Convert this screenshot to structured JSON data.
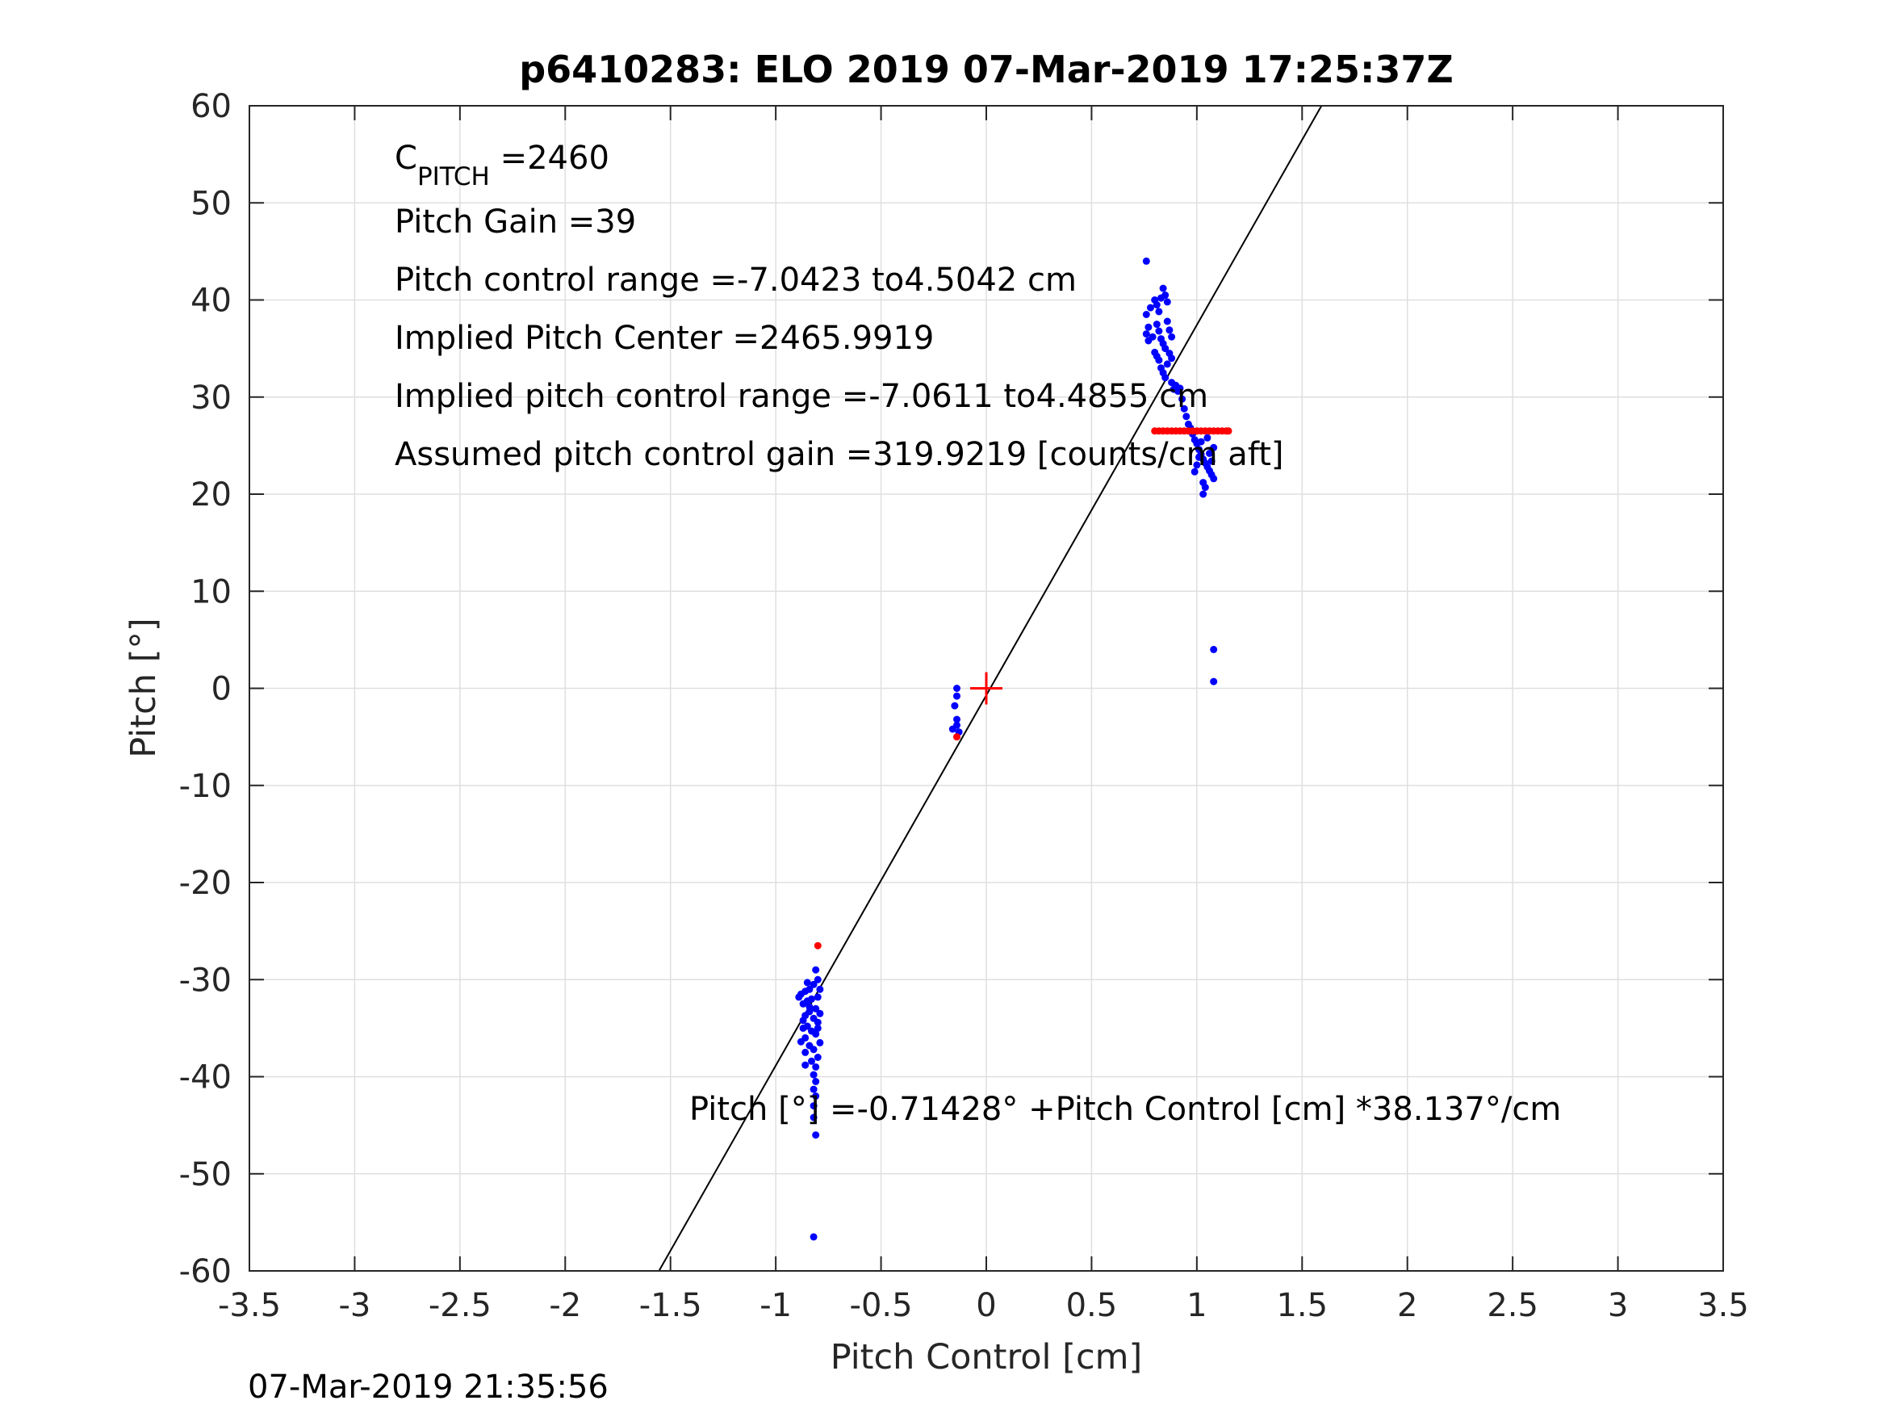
{
  "chart_data": {
    "type": "scatter",
    "title": "p6410283: ELO 2019 07-Mar-2019 17:25:37Z",
    "xlabel": "Pitch Control [cm]",
    "ylabel": "Pitch [°]",
    "xlim": [
      -3.5,
      3.5
    ],
    "ylim": [
      -60,
      60
    ],
    "grid": true,
    "xticks": [
      -3.5,
      -3,
      -2.5,
      -2,
      -1.5,
      -1,
      -0.5,
      0,
      0.5,
      1,
      1.5,
      2,
      2.5,
      3,
      3.5
    ],
    "xtick_labels": [
      "-3.5",
      "-3",
      "-2.5",
      "-2",
      "-1.5",
      "-1",
      "-0.5",
      "0",
      "0.5",
      "1",
      "1.5",
      "2",
      "2.5",
      "3",
      "3.5"
    ],
    "yticks": [
      -60,
      -50,
      -40,
      -30,
      -20,
      -10,
      0,
      10,
      20,
      30,
      40,
      50,
      60
    ],
    "ytick_labels": [
      "-60",
      "-50",
      "-40",
      "-30",
      "-20",
      "-10",
      "0",
      "10",
      "20",
      "30",
      "40",
      "50",
      "60"
    ],
    "footer_timestamp": "07-Mar-2019 21:35:56",
    "annotations": {
      "c_pitch_main": "C",
      "c_pitch_sub": "PITCH",
      "c_pitch_value": " =2460",
      "pitch_gain": "Pitch Gain =39",
      "pitch_control_range": "Pitch control range =-7.0423 to4.5042 cm",
      "implied_pitch_center": "Implied Pitch Center =2465.9919",
      "implied_pitch_control_range": "Implied pitch control range =-7.0611 to4.4855 cm",
      "assumed_gain": "Assumed pitch control gain =319.9219 [counts/cm aft]",
      "fit_equation": "Pitch [°] =-0.71428° +Pitch Control [cm] *38.137°/cm"
    },
    "fit_line": {
      "intercept": -0.71428,
      "slope": 38.137
    },
    "center_marker": {
      "x": 0,
      "y": 0,
      "color": "#ff0000"
    },
    "blue_color": "#0000ff",
    "red_color": "#ff0000",
    "series": [
      {
        "color": "#0000ff",
        "points": [
          [
            -0.81,
            -29.0
          ],
          [
            -0.8,
            -30.0
          ],
          [
            -0.82,
            -30.5
          ],
          [
            -0.84,
            -31.0
          ],
          [
            -0.86,
            -31.2
          ],
          [
            -0.88,
            -31.5
          ],
          [
            -0.8,
            -31.8
          ],
          [
            -0.83,
            -32.0
          ],
          [
            -0.85,
            -32.2
          ],
          [
            -0.87,
            -32.5
          ],
          [
            -0.81,
            -33.0
          ],
          [
            -0.84,
            -33.3
          ],
          [
            -0.86,
            -33.7
          ],
          [
            -0.82,
            -34.0
          ],
          [
            -0.8,
            -34.4
          ],
          [
            -0.85,
            -34.8
          ],
          [
            -0.87,
            -35.0
          ],
          [
            -0.83,
            -35.3
          ],
          [
            -0.81,
            -35.6
          ],
          [
            -0.86,
            -36.0
          ],
          [
            -0.88,
            -36.4
          ],
          [
            -0.84,
            -36.8
          ],
          [
            -0.82,
            -37.2
          ],
          [
            -0.86,
            -37.5
          ],
          [
            -0.8,
            -38.0
          ],
          [
            -0.83,
            -38.4
          ],
          [
            -0.81,
            -39.0
          ],
          [
            -0.82,
            -39.8
          ],
          [
            -0.81,
            -40.5
          ],
          [
            -0.82,
            -41.3
          ],
          [
            -0.81,
            -42.0
          ],
          [
            -0.82,
            -43.0
          ],
          [
            -0.82,
            -44.2
          ],
          [
            -0.81,
            -46.0
          ],
          [
            -0.82,
            -56.5
          ],
          [
            -0.89,
            -31.8
          ],
          [
            -0.79,
            -31.0
          ],
          [
            -0.79,
            -33.5
          ],
          [
            -0.85,
            -30.3
          ],
          [
            -0.87,
            -34.2
          ],
          [
            -0.8,
            -35.0
          ],
          [
            -0.79,
            -36.5
          ],
          [
            -0.84,
            -32.8
          ],
          [
            -0.86,
            -38.8
          ],
          [
            -0.14,
            0.0
          ],
          [
            -0.14,
            -0.8
          ],
          [
            -0.15,
            -1.8
          ],
          [
            -0.14,
            -3.2
          ],
          [
            -0.14,
            -3.8
          ],
          [
            -0.16,
            -4.2
          ],
          [
            -0.13,
            -4.5
          ],
          [
            0.76,
            44.0
          ],
          [
            0.76,
            38.5
          ],
          [
            0.77,
            37.2
          ],
          [
            0.76,
            36.5
          ],
          [
            0.77,
            35.8
          ],
          [
            0.78,
            39.2
          ],
          [
            0.79,
            36.2
          ],
          [
            0.8,
            40.0
          ],
          [
            0.81,
            39.5
          ],
          [
            0.82,
            38.8
          ],
          [
            0.83,
            40.2
          ],
          [
            0.84,
            41.2
          ],
          [
            0.85,
            40.5
          ],
          [
            0.86,
            39.8
          ],
          [
            0.81,
            37.5
          ],
          [
            0.82,
            36.8
          ],
          [
            0.83,
            36.0
          ],
          [
            0.84,
            35.5
          ],
          [
            0.85,
            35.0
          ],
          [
            0.8,
            34.6
          ],
          [
            0.81,
            34.2
          ],
          [
            0.82,
            33.8
          ],
          [
            0.83,
            33.0
          ],
          [
            0.84,
            32.5
          ],
          [
            0.85,
            32.0
          ],
          [
            0.86,
            37.8
          ],
          [
            0.87,
            36.9
          ],
          [
            0.88,
            36.2
          ],
          [
            0.87,
            34.5
          ],
          [
            0.88,
            34.0
          ],
          [
            0.86,
            33.4
          ],
          [
            0.88,
            31.5
          ],
          [
            0.89,
            30.8
          ],
          [
            0.9,
            31.2
          ],
          [
            0.91,
            30.6
          ],
          [
            0.92,
            30.9
          ],
          [
            0.93,
            29.8
          ],
          [
            0.94,
            28.8
          ],
          [
            0.95,
            28.0
          ],
          [
            0.96,
            27.2
          ],
          [
            0.97,
            26.8
          ],
          [
            0.98,
            26.2
          ],
          [
            0.99,
            25.6
          ],
          [
            1.0,
            25.2
          ],
          [
            1.01,
            24.6
          ],
          [
            1.02,
            24.1
          ],
          [
            1.03,
            23.6
          ],
          [
            1.04,
            23.2
          ],
          [
            1.05,
            22.8
          ],
          [
            1.06,
            22.4
          ],
          [
            1.07,
            22.0
          ],
          [
            1.08,
            21.6
          ],
          [
            1.0,
            23.0
          ],
          [
            0.99,
            22.3
          ],
          [
            1.01,
            23.8
          ],
          [
            1.03,
            21.2
          ],
          [
            1.04,
            20.7
          ],
          [
            1.03,
            20.0
          ],
          [
            1.06,
            24.2
          ],
          [
            1.07,
            23.4
          ],
          [
            1.08,
            24.8
          ],
          [
            1.02,
            25.4
          ],
          [
            1.05,
            25.8
          ],
          [
            1.08,
            4.0
          ],
          [
            1.08,
            0.7
          ]
        ]
      },
      {
        "color": "#ff0000",
        "points": [
          [
            -0.8,
            -26.5
          ],
          [
            -0.14,
            -5.0
          ],
          [
            0.8,
            26.5
          ],
          [
            0.82,
            26.5
          ],
          [
            0.84,
            26.5
          ],
          [
            0.86,
            26.5
          ],
          [
            0.88,
            26.5
          ],
          [
            0.9,
            26.5
          ],
          [
            0.92,
            26.5
          ],
          [
            0.94,
            26.5
          ],
          [
            0.96,
            26.5
          ],
          [
            0.98,
            26.5
          ],
          [
            1.0,
            26.5
          ],
          [
            1.02,
            26.5
          ],
          [
            1.04,
            26.5
          ],
          [
            1.06,
            26.5
          ],
          [
            1.08,
            26.5
          ],
          [
            1.1,
            26.5
          ],
          [
            1.12,
            26.5
          ],
          [
            1.14,
            26.5
          ],
          [
            1.15,
            26.5
          ]
        ]
      }
    ]
  }
}
